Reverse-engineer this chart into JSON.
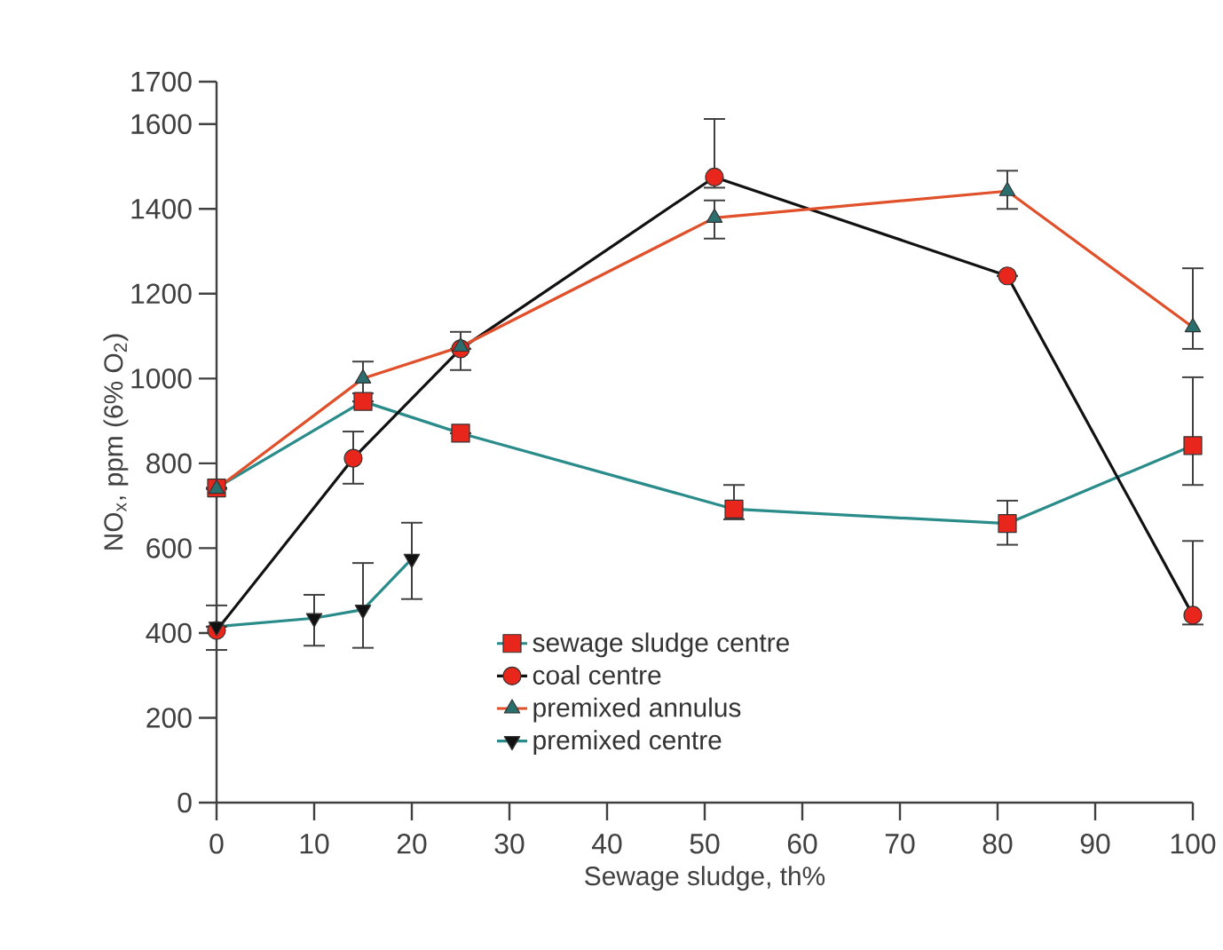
{
  "chart_data": {
    "type": "line",
    "xlabel": "Sewage sludge, th%",
    "ylabel": "NO$_{x}$, ppm (6% O$_{2}$)",
    "xlim": [
      0,
      100
    ],
    "xticks": [
      0,
      10,
      20,
      30,
      40,
      50,
      60,
      70,
      80,
      90,
      100
    ],
    "ylim": [
      0,
      1700
    ],
    "yticks": [
      0,
      200,
      400,
      600,
      800,
      1000,
      1200,
      1400,
      1600,
      1700
    ],
    "grid": false,
    "legend": "bottom",
    "line_style": "solid",
    "series": [
      {
        "name": "sewage sludge centre",
        "color": "#2a8c8a",
        "marker": "square",
        "colors": [
          "#e8261c",
          "#e8261c",
          "#e8261c",
          "#e8261c",
          "#e8261c",
          "#e8261c"
        ],
        "x": [
          0,
          15,
          25,
          53,
          81,
          100
        ],
        "values": [
          742,
          946,
          871,
          692,
          658,
          842
        ],
        "errors": [
          null,
          null,
          null,
          [
            668,
            749
          ],
          [
            608,
            712
          ],
          [
            749,
            1003
          ]
        ]
      },
      {
        "name": "coal centre",
        "color": "#111111",
        "marker": "circle",
        "colors": [
          "#e8261c",
          "#e8261c",
          "#e8261c",
          "#e8261c",
          "#e8261c",
          "#e8261c"
        ],
        "x": [
          0,
          14,
          25,
          51,
          81,
          100
        ],
        "values": [
          406,
          812,
          1070,
          1475,
          1242,
          442
        ],
        "errors": [
          [
            360,
            465
          ],
          [
            752,
            875
          ],
          null,
          [
            1450,
            1612
          ],
          null,
          [
            420,
            617
          ]
        ]
      },
      {
        "name": "premixed annulus",
        "color": "#e0502a",
        "marker": "triangle",
        "colors": [
          "#2a6e6e",
          "#2a6e6e",
          "#2a6e6e",
          "#2a6e6e",
          "#2a6e6e",
          "#2a6e6e"
        ],
        "x": [
          0,
          15,
          25,
          51,
          81,
          100
        ],
        "values": [
          740,
          1000,
          1075,
          1379,
          1442,
          1121
        ],
        "errors": [
          null,
          [
            965,
            1040
          ],
          [
            1020,
            1110
          ],
          [
            1330,
            1420
          ],
          [
            1400,
            1490
          ],
          [
            1070,
            1260
          ]
        ]
      },
      {
        "name": "premixed centre",
        "color": "#2a8c8a",
        "marker": "triangle-down",
        "colors": [
          "#111111",
          "#111111",
          "#111111",
          "#111111"
        ],
        "x": [
          0,
          10,
          15,
          20
        ],
        "values": [
          415,
          435,
          455,
          575
        ],
        "errors": [
          null,
          [
            370,
            490
          ],
          [
            365,
            565
          ],
          [
            480,
            660
          ]
        ]
      }
    ]
  }
}
